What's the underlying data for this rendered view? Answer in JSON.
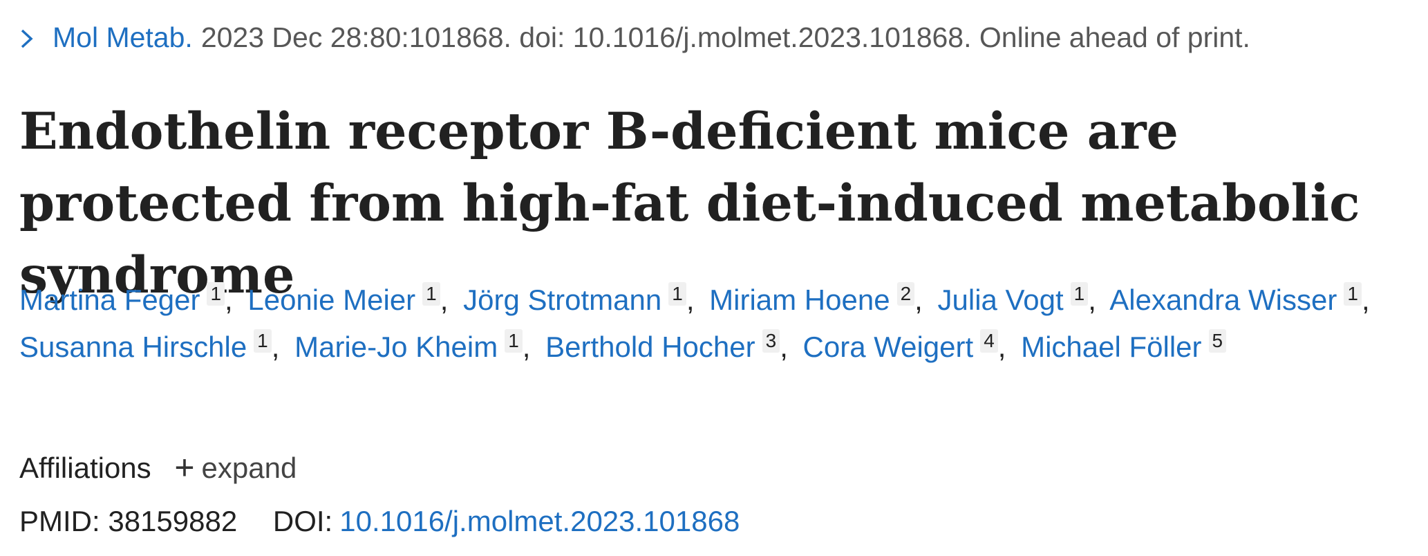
{
  "citation": {
    "journal": "Mol Metab.",
    "details": "2023 Dec 28:80:101868. doi: 10.1016/j.molmet.2023.101868. Online ahead of print."
  },
  "title": "Endothelin receptor B-deficient mice are protected from high-fat diet-induced metabolic syndrome",
  "authors": [
    {
      "name": "Martina Feger",
      "aff": "1"
    },
    {
      "name": "Leonie Meier",
      "aff": "1"
    },
    {
      "name": "Jörg Strotmann",
      "aff": "1"
    },
    {
      "name": "Miriam Hoene",
      "aff": "2"
    },
    {
      "name": "Julia Vogt",
      "aff": "1"
    },
    {
      "name": "Alexandra Wisser",
      "aff": "1"
    },
    {
      "name": "Susanna Hirschle",
      "aff": "1"
    },
    {
      "name": "Marie-Jo Kheim",
      "aff": "1"
    },
    {
      "name": "Berthold Hocher",
      "aff": "3"
    },
    {
      "name": "Cora Weigert",
      "aff": "4"
    },
    {
      "name": "Michael Föller",
      "aff": "5"
    }
  ],
  "affiliations": {
    "label": "Affiliations",
    "expand_icon": "+",
    "expand_label": "expand"
  },
  "ids": {
    "pmid_label": "PMID:",
    "pmid": "38159882",
    "doi_label": "DOI:",
    "doi": "10.1016/j.molmet.2023.101868"
  },
  "colors": {
    "link": "#1e6fc1",
    "text": "#212121",
    "muted": "#575757"
  }
}
